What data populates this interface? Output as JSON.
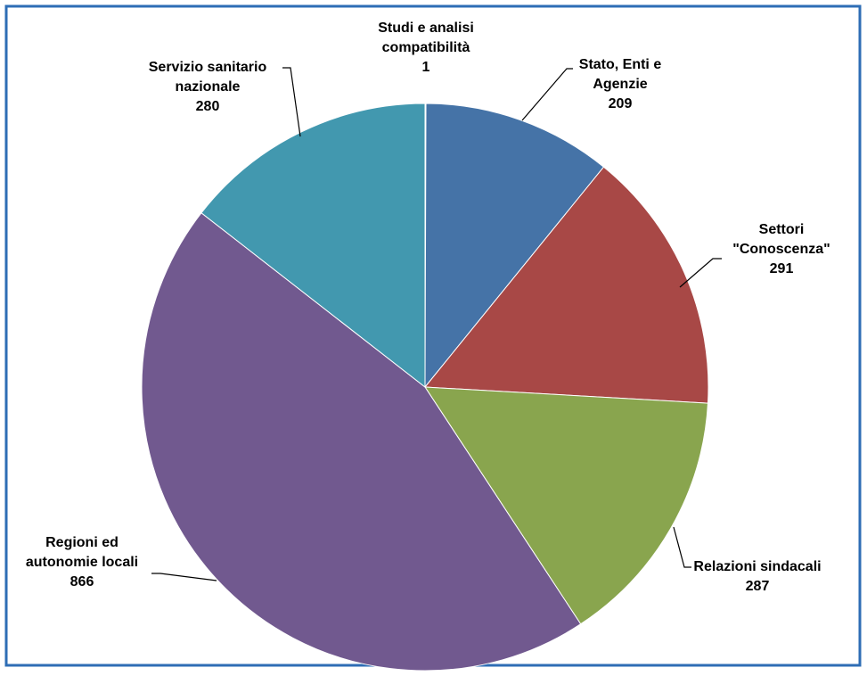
{
  "chart_data": {
    "type": "pie",
    "title": "",
    "start_angle_deg": 0,
    "direction": "clockwise",
    "slices": [
      {
        "label": [
          "Studi e analisi",
          "compatibilità"
        ],
        "value": 1,
        "value_text": "1",
        "color": "#4E81BD"
      },
      {
        "label": [
          "Stato, Enti e",
          "Agenzie"
        ],
        "value": 209,
        "value_text": "209",
        "color": "#4573A7"
      },
      {
        "label": [
          "Settori",
          "\"Conoscenza\""
        ],
        "value": 291,
        "value_text": "291",
        "color": "#A84846"
      },
      {
        "label": [
          "Relazioni sindacali"
        ],
        "value": 287,
        "value_text": "287",
        "color": "#89A54E"
      },
      {
        "label": [
          "Regioni ed",
          "autonomie locali"
        ],
        "value": 866,
        "value_text": "866",
        "color": "#71598F"
      },
      {
        "label": [
          "Servizio sanitario",
          "nazionale"
        ],
        "value": 280,
        "value_text": "280",
        "color": "#4298AF"
      }
    ],
    "border_color": "#2E6DB5",
    "slice_edge_color": "#ffffff"
  }
}
